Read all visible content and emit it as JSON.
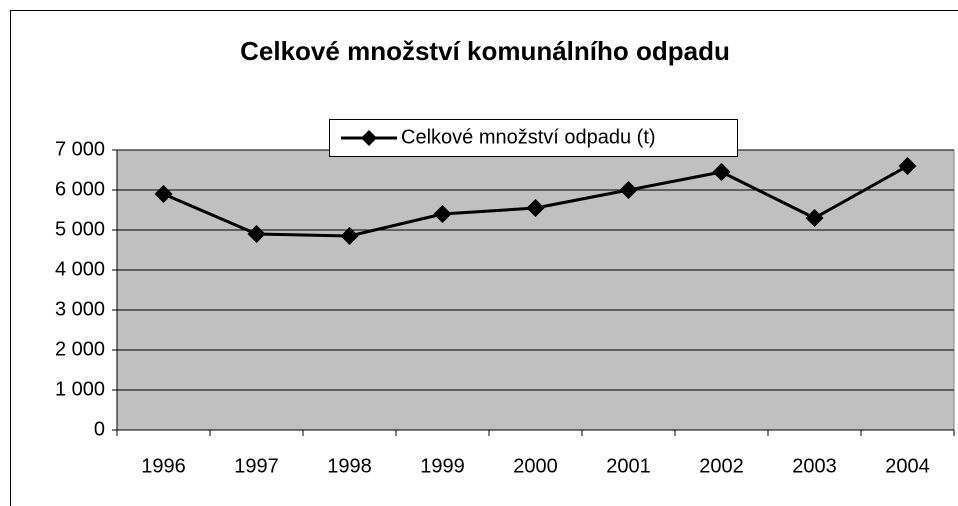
{
  "chart_data": {
    "type": "line",
    "title": "Celkové množství komunálního odpadu",
    "categories": [
      "1996",
      "1997",
      "1998",
      "1999",
      "2000",
      "2001",
      "2002",
      "2003",
      "2004"
    ],
    "series": [
      {
        "name": "Celkové množství odpadu (t)",
        "color": "#000000",
        "values": [
          5900,
          4900,
          4850,
          5400,
          5550,
          6000,
          6450,
          5300,
          6600
        ]
      }
    ],
    "ylim": [
      0,
      7000
    ],
    "yticks": [
      0,
      {
        "value": 1000,
        "label": "1 000"
      },
      {
        "value": 2000,
        "label": "2 000"
      },
      {
        "value": 3000,
        "label": "3 000"
      },
      {
        "value": 4000,
        "label": "4 000"
      },
      {
        "value": 5000,
        "label": "5 000"
      },
      {
        "value": 6000,
        "label": "6 000"
      },
      {
        "value": 7000,
        "label": "7 000"
      }
    ],
    "grid": true,
    "legend": "top",
    "plot_background": "#c0c0c0"
  }
}
